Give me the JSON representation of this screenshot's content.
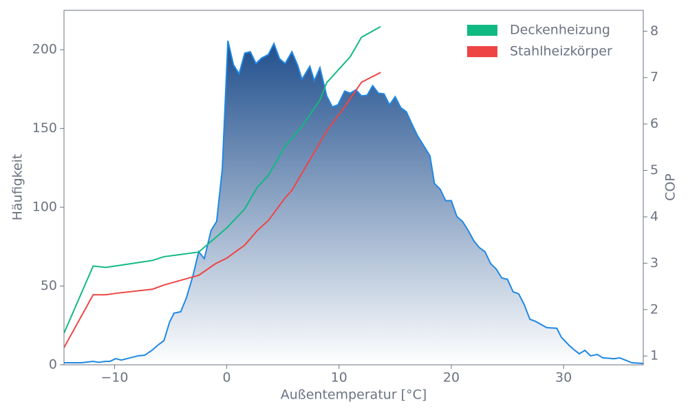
{
  "chart_data": {
    "type": "area",
    "xlabel": "Außentemperatur [°C]",
    "ylabel": "Häufigkeit",
    "y2label": "COP",
    "xlim": [
      -14.5,
      37.1
    ],
    "ylim": [
      0,
      225
    ],
    "y2lim": [
      0.81,
      8.45
    ],
    "xticks": [
      {
        "value": -10,
        "label": "−10"
      },
      0,
      10,
      20,
      30
    ],
    "yticks": [
      0,
      50,
      100,
      150,
      200
    ],
    "y2ticks": [
      1,
      2,
      3,
      4,
      5,
      6,
      7,
      8
    ],
    "color": "#1e88e5",
    "fill_top": "#1f4e8c",
    "fill_bottom": "#ffffff",
    "legend": "upper right",
    "x": [
      -14.5,
      -13.4,
      -12.9,
      -12.4,
      -11.9,
      -11.4,
      -10.8,
      -10.4,
      -9.9,
      -9.4,
      -8.9,
      -7.9,
      -7.3,
      -6.6,
      -6.1,
      -5.6,
      -5.1,
      -4.7,
      -4.1,
      -3.6,
      -3.0,
      -2.5,
      -2.0,
      -1.4,
      -0.9,
      -0.4,
      0.1,
      0.6,
      1.1,
      1.6,
      2.1,
      2.6,
      3.1,
      3.7,
      4.2,
      4.7,
      5.2,
      5.8,
      6.3,
      6.7,
      7.4,
      7.8,
      8.3,
      8.9,
      9.4,
      9.9,
      10.5,
      11.0,
      11.5,
      12.0,
      12.5,
      13.0,
      13.5,
      14.0,
      14.5,
      15.0,
      15.5,
      16.0,
      16.5,
      17.0,
      17.5,
      18.1,
      18.5,
      19.0,
      19.5,
      20.0,
      20.5,
      21.0,
      21.5,
      22.0,
      22.5,
      23.0,
      23.5,
      24.0,
      24.5,
      25.0,
      25.5,
      26.0,
      26.5,
      27.0,
      27.5,
      28.5,
      29.4,
      29.8,
      30.5,
      31.0,
      31.4,
      31.9,
      32.4,
      33.0,
      33.5,
      34.5,
      35.0,
      36.1,
      37.1
    ],
    "values": [
      1.3,
      1.3,
      1.3,
      1.8,
      2.2,
      1.6,
      2.2,
      2.2,
      3.9,
      3.0,
      3.9,
      5.7,
      6.1,
      9.6,
      12.7,
      15.3,
      27.0,
      32.8,
      33.7,
      42.4,
      56.9,
      71.8,
      67.4,
      85.3,
      91.0,
      124.3,
      205.7,
      190.4,
      184.7,
      197.8,
      198.7,
      191.2,
      194.7,
      196.9,
      203.9,
      194.3,
      191.2,
      198.7,
      190.4,
      181.2,
      189.5,
      180.3,
      188.6,
      170.7,
      163.7,
      165.0,
      173.7,
      172.4,
      174.6,
      170.7,
      171.1,
      177.2,
      172.4,
      172.0,
      165.0,
      170.2,
      163.2,
      160.6,
      152.7,
      145.3,
      139.6,
      132.6,
      115.1,
      111.6,
      104.2,
      104.2,
      94.1,
      91.0,
      85.3,
      78.8,
      74.4,
      71.8,
      64.3,
      60.8,
      55.1,
      54.3,
      46.4,
      45.1,
      38.1,
      28.9,
      27.6,
      23.6,
      23.2,
      17.5,
      12.3,
      9.2,
      7.0,
      9.2,
      5.7,
      6.6,
      4.4,
      3.9,
      4.4,
      1.3,
      0.9
    ],
    "series": [
      {
        "name": "Deckenheizung",
        "color": "#10b981",
        "axis": "y2",
        "x": [
          -14.5,
          -11.9,
          -10.8,
          -9.9,
          -6.6,
          -5.6,
          -2.5,
          0,
          1.6,
          2.7,
          3.7,
          5.2,
          6.7,
          8.3,
          8.9,
          11.0,
          12.0,
          13.7
        ],
        "values": [
          1.49,
          2.94,
          2.91,
          2.94,
          3.06,
          3.14,
          3.24,
          3.76,
          4.17,
          4.63,
          4.89,
          5.52,
          5.95,
          6.52,
          6.89,
          7.45,
          7.87,
          8.1
        ]
      },
      {
        "name": "Stahlheizkörper",
        "color": "#ef4444",
        "axis": "y2",
        "x": [
          -14.5,
          -11.9,
          -10.8,
          -9.9,
          -6.6,
          -5.6,
          -2.5,
          -1.0,
          0,
          1.6,
          2.7,
          3.7,
          5.2,
          5.8,
          6.7,
          8.9,
          10.5,
          12.0,
          13.7
        ],
        "values": [
          1.18,
          2.32,
          2.32,
          2.35,
          2.44,
          2.53,
          2.74,
          2.99,
          3.11,
          3.39,
          3.7,
          3.92,
          4.41,
          4.57,
          4.94,
          5.85,
          6.37,
          6.9,
          7.11
        ]
      }
    ]
  }
}
